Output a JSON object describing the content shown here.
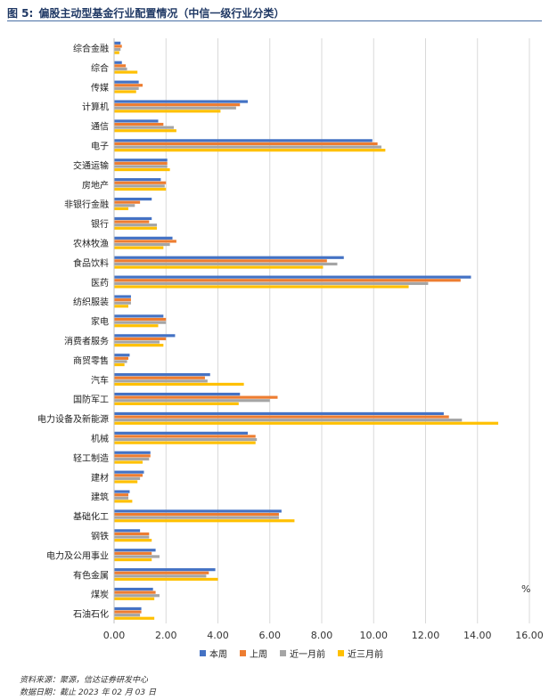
{
  "header": {
    "figure_label": "图 5:",
    "title": "偏股主动型基金行业配置情况（中信一级行业分类）"
  },
  "unit": "%",
  "footer": {
    "source": "资料来源：聚源，信达证券研发中心",
    "date": "数据日期：截止 2023 年 02 月 03 日"
  },
  "colors": {
    "本周": "#4472c4",
    "上周": "#ed7d31",
    "近一月前": "#a5a5a5",
    "近三月前": "#ffc000"
  },
  "chart_data": {
    "type": "bar",
    "orientation": "horizontal",
    "title": "偏股主动型基金行业配置情况（中信一级行业分类）",
    "xlabel": "",
    "ylabel": "",
    "unit": "%",
    "xlim": [
      0,
      16
    ],
    "xticks": [
      "0.00",
      "2.00",
      "4.00",
      "6.00",
      "8.00",
      "10.00",
      "12.00",
      "14.00",
      "16.00"
    ],
    "grid": true,
    "legend_position": "bottom",
    "categories": [
      "综合金融",
      "综合",
      "传媒",
      "计算机",
      "通信",
      "电子",
      "交通运输",
      "房地产",
      "非银行金融",
      "银行",
      "农林牧渔",
      "食品饮料",
      "医药",
      "纺织服装",
      "家电",
      "消费者服务",
      "商贸零售",
      "汽车",
      "国防军工",
      "电力设备及新能源",
      "机械",
      "轻工制造",
      "建材",
      "建筑",
      "基础化工",
      "钢铁",
      "电力及公用事业",
      "有色金属",
      "煤炭",
      "石油石化"
    ],
    "series": [
      {
        "name": "本周",
        "values": [
          0.25,
          0.3,
          0.95,
          5.15,
          1.7,
          9.95,
          2.05,
          1.8,
          1.45,
          1.45,
          2.25,
          8.85,
          13.75,
          0.65,
          1.9,
          2.35,
          0.6,
          3.7,
          4.85,
          12.7,
          5.15,
          1.4,
          1.15,
          0.6,
          6.45,
          1.0,
          1.6,
          3.9,
          1.5,
          1.05
        ]
      },
      {
        "name": "上周",
        "values": [
          0.3,
          0.45,
          1.1,
          4.85,
          1.9,
          10.15,
          2.05,
          2.0,
          1.0,
          1.35,
          2.4,
          8.2,
          13.35,
          0.65,
          2.0,
          2.0,
          0.55,
          3.5,
          6.3,
          12.9,
          5.45,
          1.4,
          1.1,
          0.55,
          6.35,
          1.35,
          1.45,
          3.65,
          1.6,
          1.05
        ]
      },
      {
        "name": "近一月前",
        "values": [
          0.25,
          0.5,
          0.95,
          4.7,
          2.3,
          10.3,
          2.05,
          1.95,
          0.8,
          1.65,
          2.15,
          8.6,
          12.1,
          0.65,
          2.0,
          1.75,
          0.5,
          3.6,
          6.0,
          13.4,
          5.5,
          1.35,
          1.0,
          0.55,
          6.35,
          1.35,
          1.75,
          3.55,
          1.75,
          1.0
        ]
      },
      {
        "name": "近三月前",
        "values": [
          0.2,
          0.9,
          0.85,
          4.1,
          2.4,
          10.45,
          2.15,
          2.0,
          0.55,
          1.65,
          1.9,
          8.05,
          11.35,
          0.55,
          1.7,
          1.9,
          0.4,
          5.0,
          4.8,
          14.8,
          5.45,
          1.1,
          0.9,
          0.7,
          6.95,
          1.45,
          1.45,
          4.0,
          1.55,
          1.55
        ]
      }
    ]
  }
}
